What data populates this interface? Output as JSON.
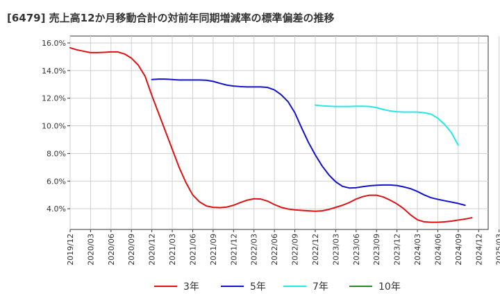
{
  "chart_data": {
    "type": "line",
    "title": "[6479]  売上高12か月移動合計の対前年同期増減率の標準偏差の推移",
    "xlabel": "",
    "ylabel": "",
    "ylim": [
      2.5,
      16.5
    ],
    "y_ticks": [
      "4.0%",
      "6.0%",
      "8.0%",
      "10.0%",
      "12.0%",
      "14.0%",
      "16.0%"
    ],
    "y_tick_values": [
      4,
      6,
      8,
      10,
      12,
      14,
      16
    ],
    "x_ticks": [
      "2019/12",
      "2020/03",
      "2020/06",
      "2020/09",
      "2020/12",
      "2021/03",
      "2021/06",
      "2021/09",
      "2021/12",
      "2022/03",
      "2022/06",
      "2022/09",
      "2022/12",
      "2023/03",
      "2023/06",
      "2023/09",
      "2023/12",
      "2024/03",
      "2024/06",
      "2024/09",
      "2024/12",
      "2025/03"
    ],
    "x_range_months": [
      0,
      63
    ],
    "grid": true,
    "legend_position": "bottom",
    "series": [
      {
        "name": "3年",
        "color": "#dd1111",
        "points": [
          [
            0,
            15.65
          ],
          [
            1,
            15.5
          ],
          [
            2,
            15.4
          ],
          [
            3,
            15.3
          ],
          [
            4,
            15.3
          ],
          [
            5,
            15.32
          ],
          [
            6,
            15.35
          ],
          [
            7,
            15.35
          ],
          [
            8,
            15.2
          ],
          [
            9,
            14.9
          ],
          [
            10,
            14.4
          ],
          [
            11,
            13.6
          ],
          [
            12,
            12.2
          ],
          [
            13,
            10.9
          ],
          [
            14,
            9.6
          ],
          [
            15,
            8.3
          ],
          [
            16,
            7.0
          ],
          [
            17,
            5.9
          ],
          [
            18,
            5.0
          ],
          [
            19,
            4.5
          ],
          [
            20,
            4.2
          ],
          [
            21,
            4.1
          ],
          [
            22,
            4.08
          ],
          [
            23,
            4.12
          ],
          [
            24,
            4.25
          ],
          [
            25,
            4.45
          ],
          [
            26,
            4.62
          ],
          [
            27,
            4.72
          ],
          [
            28,
            4.7
          ],
          [
            29,
            4.55
          ],
          [
            30,
            4.3
          ],
          [
            31,
            4.1
          ],
          [
            32,
            3.98
          ],
          [
            33,
            3.92
          ],
          [
            34,
            3.88
          ],
          [
            35,
            3.85
          ],
          [
            36,
            3.82
          ],
          [
            37,
            3.85
          ],
          [
            38,
            3.95
          ],
          [
            39,
            4.1
          ],
          [
            40,
            4.25
          ],
          [
            41,
            4.45
          ],
          [
            42,
            4.7
          ],
          [
            43,
            4.88
          ],
          [
            44,
            4.98
          ],
          [
            45,
            4.98
          ],
          [
            46,
            4.85
          ],
          [
            47,
            4.62
          ],
          [
            48,
            4.35
          ],
          [
            49,
            4.0
          ],
          [
            50,
            3.55
          ],
          [
            51,
            3.2
          ],
          [
            52,
            3.05
          ],
          [
            53,
            3.02
          ],
          [
            54,
            3.02
          ],
          [
            55,
            3.05
          ],
          [
            56,
            3.1
          ],
          [
            57,
            3.18
          ],
          [
            58,
            3.25
          ],
          [
            59,
            3.35
          ]
        ]
      },
      {
        "name": "5年",
        "color": "#1111cc",
        "points": [
          [
            12,
            13.35
          ],
          [
            13,
            13.38
          ],
          [
            14,
            13.38
          ],
          [
            15,
            13.35
          ],
          [
            16,
            13.32
          ],
          [
            17,
            13.32
          ],
          [
            18,
            13.32
          ],
          [
            19,
            13.32
          ],
          [
            20,
            13.3
          ],
          [
            21,
            13.22
          ],
          [
            22,
            13.08
          ],
          [
            23,
            12.95
          ],
          [
            24,
            12.88
          ],
          [
            25,
            12.84
          ],
          [
            26,
            12.82
          ],
          [
            27,
            12.82
          ],
          [
            28,
            12.82
          ],
          [
            29,
            12.78
          ],
          [
            30,
            12.6
          ],
          [
            31,
            12.25
          ],
          [
            32,
            11.75
          ],
          [
            33,
            10.95
          ],
          [
            34,
            9.85
          ],
          [
            35,
            8.8
          ],
          [
            36,
            7.9
          ],
          [
            37,
            7.1
          ],
          [
            38,
            6.45
          ],
          [
            39,
            5.95
          ],
          [
            40,
            5.62
          ],
          [
            41,
            5.5
          ],
          [
            42,
            5.52
          ],
          [
            43,
            5.6
          ],
          [
            44,
            5.66
          ],
          [
            45,
            5.7
          ],
          [
            46,
            5.72
          ],
          [
            47,
            5.72
          ],
          [
            48,
            5.68
          ],
          [
            49,
            5.58
          ],
          [
            50,
            5.45
          ],
          [
            51,
            5.25
          ],
          [
            52,
            5.0
          ],
          [
            53,
            4.8
          ],
          [
            54,
            4.68
          ],
          [
            55,
            4.58
          ],
          [
            56,
            4.48
          ],
          [
            57,
            4.38
          ],
          [
            58,
            4.25
          ]
        ]
      },
      {
        "name": "7年",
        "color": "#22e8e8",
        "points": [
          [
            36,
            11.5
          ],
          [
            37,
            11.45
          ],
          [
            38,
            11.42
          ],
          [
            39,
            11.4
          ],
          [
            40,
            11.4
          ],
          [
            41,
            11.4
          ],
          [
            42,
            11.42
          ],
          [
            43,
            11.42
          ],
          [
            44,
            11.4
          ],
          [
            45,
            11.32
          ],
          [
            46,
            11.18
          ],
          [
            47,
            11.08
          ],
          [
            48,
            11.02
          ],
          [
            49,
            11.0
          ],
          [
            50,
            11.0
          ],
          [
            51,
            11.0
          ],
          [
            52,
            10.95
          ],
          [
            53,
            10.85
          ],
          [
            54,
            10.55
          ],
          [
            55,
            10.1
          ],
          [
            56,
            9.5
          ],
          [
            57,
            8.6
          ]
        ]
      },
      {
        "name": "10年",
        "color": "#228822",
        "points": []
      }
    ]
  }
}
